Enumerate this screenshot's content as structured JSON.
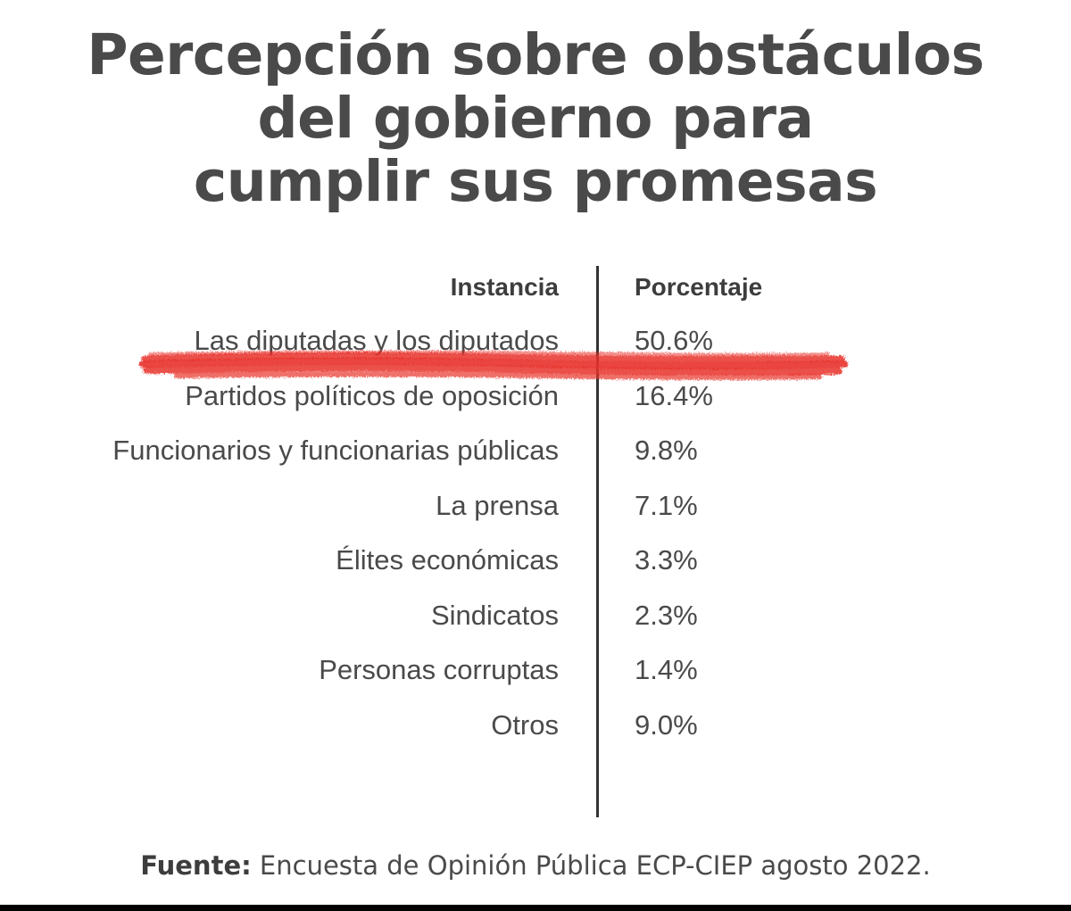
{
  "title": {
    "line1": "Percepción sobre obstáculos",
    "line2": "del gobierno para",
    "line3": "cumplir sus promesas"
  },
  "chart_data": {
    "type": "table",
    "title": "Percepción sobre obstáculos del gobierno para cumplir sus promesas",
    "columns": [
      "Instancia",
      "Porcentaje"
    ],
    "rows": [
      {
        "label": "Las diputadas y los diputados",
        "value": "50.6%"
      },
      {
        "label": "Partidos políticos de oposición",
        "value": "16.4%"
      },
      {
        "label": "Funcionarios y funcionarias públicas",
        "value": "9.8%"
      },
      {
        "label": "La prensa",
        "value": "7.1%"
      },
      {
        "label": "Élites económicas",
        "value": "3.3%"
      },
      {
        "label": "Sindicatos",
        "value": "2.3%"
      },
      {
        "label": "Personas corruptas",
        "value": "1.4%"
      },
      {
        "label": "Otros",
        "value": "9.0%"
      }
    ],
    "values": [
      50.6,
      16.4,
      9.8,
      7.1,
      3.3,
      2.3,
      1.4,
      9.0
    ],
    "highlighted_row": 0
  },
  "footer": {
    "label": "Fuente:",
    "text": " Encuesta de Opinión Pública ECP-CIEP agosto 2022."
  },
  "colors": {
    "text": "#4a4a4a",
    "divider": "#333333",
    "highlight": "#e8322b"
  }
}
